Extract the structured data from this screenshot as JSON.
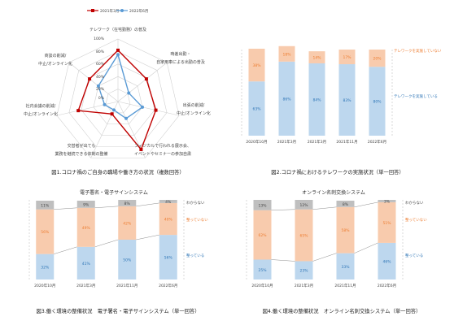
{
  "radar": {
    "legend": [
      "2021年3月",
      "2022年6月"
    ],
    "caption": "図1.コロナ禍のご自身の職場や働き方の状況（複数回答）",
    "axis_labels": [
      "テレワーク（在宅勤務）の普及",
      "時差出勤・",
      "自家用車による出勤の普及",
      "出張の削減/",
      "中止/オンライン化",
      "フィジカルで行われる展示会、",
      "イベントやセミナーの参加自粛",
      "交替者が出ても",
      "業務を継続できる体制の整備",
      "社内会議の削減/",
      "中止/オンライン化",
      "商談の削減/",
      "中止/オンライン化"
    ],
    "tick_labels": [
      "100%",
      "80%",
      "60%",
      "40%",
      "20%",
      "0%"
    ]
  },
  "chart2": {
    "caption": "図2.コロナ禍におけるテレワークの実施状況（単一回答）",
    "categories": [
      "2020年10月",
      "2021年3月",
      "2021年3月",
      "2021年11月",
      "2022年6月"
    ],
    "labels_bottom": [
      "63%",
      "86%",
      "84%",
      "83%",
      "80%"
    ],
    "labels_top": [
      "38%",
      "18%",
      "14%",
      "17%",
      "20%"
    ],
    "legend_top": "テレワークを実施していない",
    "legend_bottom": "テレワークを実施している"
  },
  "chart3": {
    "title": "電子署名・電子サインシステム",
    "caption": "図3.働く環境の整備状況　電子署名・電子サインシステム（単一回答）",
    "categories": [
      "2020年10月",
      "2021年3月",
      "2021年11月",
      "2022年6月"
    ],
    "labels_bottom": [
      "32%",
      "41%",
      "50%",
      "56%"
    ],
    "labels_mid": [
      "56%",
      "49%",
      "42%",
      "40%"
    ],
    "labels_top": [
      "11%",
      "9%",
      "8%",
      "4%"
    ],
    "legend": [
      "わからない",
      "整っていない",
      "整っている"
    ]
  },
  "chart4": {
    "title": "オンライン名刺交換システム",
    "caption": "図4.働く環境の整備状況　オンライン名刺交換システム（単一回答）",
    "categories": [
      "2020年10月",
      "2021年3月",
      "2021年11月",
      "2022年6月"
    ],
    "labels_bottom": [
      "25%",
      "23%",
      "33%",
      "46%"
    ],
    "labels_mid": [
      "62%",
      "65%",
      "58%",
      "51%"
    ],
    "labels_top": [
      "13%",
      "12%",
      "8%",
      "3%"
    ],
    "legend": [
      "わからない",
      "整っていない",
      "整っている"
    ]
  },
  "colors": {
    "red": "#c00000",
    "blue": "#5b9bd5",
    "bar_blue": "#bdd7ee",
    "bar_orange": "#f8cbad",
    "bar_gray": "#bfbfbf",
    "label_blue": "#2e75b6",
    "label_orange": "#ed7d31"
  },
  "chart_data": [
    {
      "type": "radar",
      "axes": [
        "テレワーク（在宅勤務）の普及",
        "時差出勤・自家用車による出勤の普及",
        "出張の削減/中止/オンライン化",
        "フィジカルで行われる展示会、イベントやセミナーの参加自粛",
        "交替者が出ても業務を継続できる体制の整備",
        "社内会議の削減/中止/オンライン化",
        "商談の削減/中止/オンライン化"
      ],
      "rlim": [
        0,
        100
      ],
      "series": [
        {
          "name": "2021年3月",
          "values": [
            82,
            58,
            62,
            85,
            22,
            65,
            58
          ]
        },
        {
          "name": "2022年6月",
          "values": [
            75,
            22,
            40,
            30,
            15,
            22,
            40
          ]
        }
      ]
    },
    {
      "type": "bar",
      "stacked": true,
      "categories": [
        "2020年10月",
        "2021年3月",
        "2021年3月",
        "2021年11月",
        "2022年6月"
      ],
      "ylim": [
        0,
        100
      ],
      "series": [
        {
          "name": "テレワークを実施している",
          "values": [
            63,
            86,
            84,
            83,
            80
          ]
        },
        {
          "name": "テレワークを実施していない",
          "values": [
            38,
            18,
            14,
            17,
            20
          ]
        }
      ]
    },
    {
      "type": "bar",
      "stacked": true,
      "title": "電子署名・電子サインシステム",
      "categories": [
        "2020年10月",
        "2021年3月",
        "2021年11月",
        "2022年6月"
      ],
      "ylim": [
        0,
        100
      ],
      "series": [
        {
          "name": "整っている",
          "values": [
            32,
            41,
            50,
            56
          ]
        },
        {
          "name": "整っていない",
          "values": [
            56,
            49,
            42,
            40
          ]
        },
        {
          "name": "わからない",
          "values": [
            11,
            9,
            8,
            4
          ]
        }
      ]
    },
    {
      "type": "bar",
      "stacked": true,
      "title": "オンライン名刺交換システム",
      "categories": [
        "2020年10月",
        "2021年3月",
        "2021年11月",
        "2022年6月"
      ],
      "ylim": [
        0,
        100
      ],
      "series": [
        {
          "name": "整っている",
          "values": [
            25,
            23,
            33,
            46
          ]
        },
        {
          "name": "整っていない",
          "values": [
            62,
            65,
            58,
            51
          ]
        },
        {
          "name": "わからない",
          "values": [
            13,
            12,
            8,
            3
          ]
        }
      ]
    }
  ]
}
